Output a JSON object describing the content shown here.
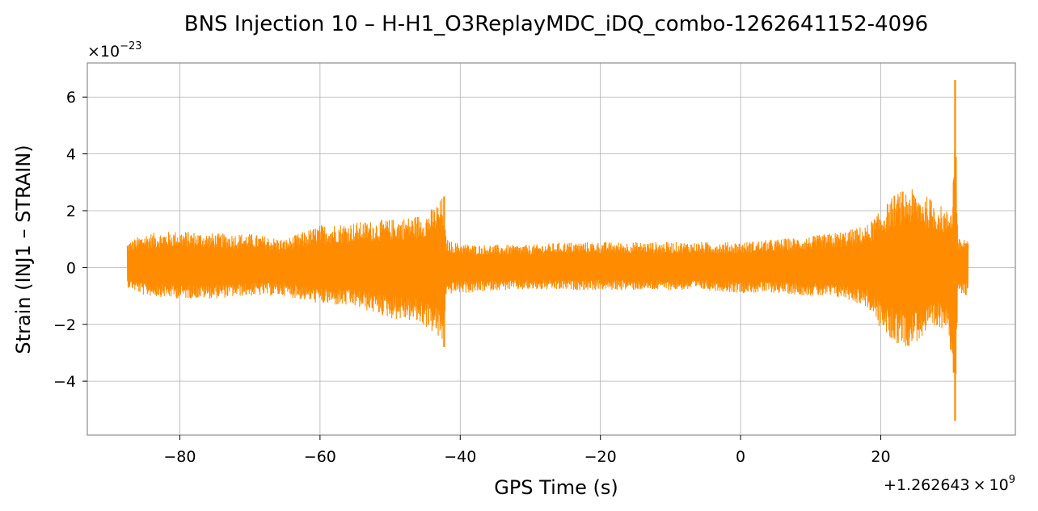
{
  "chart_data": {
    "type": "line",
    "title": "BNS Injection 10 – H-H1_O3ReplayMDC_iDQ_combo-1262641152-4096",
    "xlabel": "GPS Time (s)",
    "ylabel": "Strain (INJ1 – STRAIN)",
    "x_offset_label": "+1.262643",
    "x_offset_times": "×",
    "x_offset_base": "10",
    "x_offset_exp": "9",
    "y_multiplier_times": "×",
    "y_multiplier_base": "10",
    "y_multiplier_exp": "−23",
    "xlim": [
      -93.2,
      39.2
    ],
    "ylim": [
      -5.9,
      7.2
    ],
    "grid": true,
    "x_ticks": [
      {
        "value": -80,
        "label": "−80"
      },
      {
        "value": -60,
        "label": "−60"
      },
      {
        "value": -40,
        "label": "−40"
      },
      {
        "value": -20,
        "label": "−20"
      },
      {
        "value": 0,
        "label": "0"
      },
      {
        "value": 20,
        "label": "20"
      }
    ],
    "y_ticks": [
      {
        "value": -4,
        "label": "−4"
      },
      {
        "value": -2,
        "label": "−2"
      },
      {
        "value": 0,
        "label": "0"
      },
      {
        "value": 2,
        "label": "2"
      },
      {
        "value": 4,
        "label": "4"
      },
      {
        "value": 6,
        "label": "6"
      }
    ],
    "series": [
      {
        "color": "#ff8c00",
        "x_range": [
          -87.5,
          32.5
        ],
        "envelope": {
          "x": [
            -87.5,
            -85,
            -80,
            -75,
            -70,
            -65,
            -60,
            -55,
            -50,
            -47,
            -45,
            -43.5,
            -42.5,
            -42.0,
            -41.0,
            -38,
            -35,
            -30,
            -25,
            -20,
            -15,
            -10,
            -5,
            0,
            5,
            10,
            15,
            18,
            20,
            22,
            24,
            26,
            28,
            29.5,
            30.3,
            30.6,
            31.0,
            32.5
          ],
          "upper": [
            0.9,
            1.2,
            1.3,
            1.2,
            1.2,
            1.0,
            1.5,
            1.6,
            1.7,
            1.8,
            1.9,
            2.2,
            2.5,
            1.0,
            0.9,
            0.8,
            0.8,
            0.8,
            0.9,
            0.9,
            0.9,
            0.9,
            0.9,
            0.9,
            1.0,
            1.1,
            1.3,
            1.5,
            2.0,
            2.6,
            2.8,
            2.6,
            2.3,
            2.0,
            2.5,
            6.6,
            1.0,
            1.1
          ],
          "lower": [
            -0.7,
            -1.0,
            -1.1,
            -1.1,
            -1.0,
            -1.0,
            -1.3,
            -1.4,
            -1.8,
            -1.9,
            -2.1,
            -2.4,
            -2.8,
            -1.0,
            -0.9,
            -0.9,
            -0.8,
            -0.8,
            -0.8,
            -0.8,
            -0.8,
            -0.8,
            -0.8,
            -0.9,
            -0.9,
            -1.0,
            -1.1,
            -1.4,
            -2.2,
            -2.7,
            -2.8,
            -2.5,
            -2.3,
            -2.0,
            -3.7,
            -5.4,
            -1.0,
            -1.0
          ]
        },
        "spikes": [
          {
            "x": 30.6,
            "min": -5.4,
            "max": 6.6
          },
          {
            "x": 30.4,
            "min": -3.7,
            "max": 3.0
          },
          {
            "x": -42.3,
            "min": -2.8,
            "max": 2.5
          }
        ]
      }
    ]
  }
}
